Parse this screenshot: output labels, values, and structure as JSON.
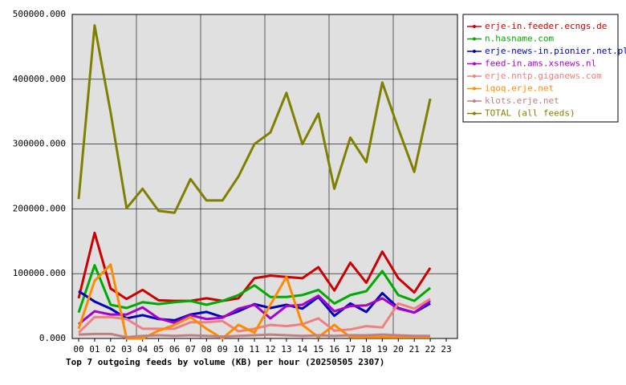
{
  "chart_data": {
    "type": "line",
    "title": "Top 7 outgoing feeds by volume (KB) per hour (20250505 2307)",
    "categories": [
      "00",
      "01",
      "02",
      "03",
      "04",
      "05",
      "06",
      "07",
      "08",
      "09",
      "10",
      "11",
      "12",
      "13",
      "14",
      "15",
      "16",
      "17",
      "18",
      "19",
      "20",
      "21",
      "22",
      "23"
    ],
    "ylim": [
      0,
      500000
    ],
    "yticks": [
      {
        "value": 0,
        "label": "0.000"
      },
      {
        "value": 100000,
        "label": "100000.000"
      },
      {
        "value": 200000,
        "label": "200000.000"
      },
      {
        "value": 300000,
        "label": "300000.000"
      },
      {
        "value": 400000,
        "label": "400000.000"
      },
      {
        "value": 500000,
        "label": "500000.000"
      }
    ],
    "grid": true,
    "legend": "right",
    "series": [
      {
        "name": "erje-in.feeder.ecngs.de",
        "color": "#cc0000",
        "values": [
          62000,
          163000,
          77000,
          61000,
          75000,
          59000,
          58000,
          58000,
          62000,
          58000,
          62000,
          93000,
          97000,
          95000,
          93000,
          110000,
          74000,
          117000,
          86000,
          134000,
          93000,
          71000,
          109000,
          null
        ]
      },
      {
        "name": "n.hasname.com",
        "color": "#00aa00",
        "values": [
          40000,
          113000,
          52000,
          47000,
          56000,
          53000,
          56000,
          58000,
          52000,
          58000,
          67000,
          82000,
          64000,
          64000,
          67000,
          75000,
          54000,
          67000,
          73000,
          104000,
          67000,
          58000,
          78000,
          null
        ]
      },
      {
        "name": "erje-news-in.pionier.net.pl",
        "color": "#0000bb",
        "values": [
          73000,
          57000,
          46000,
          31000,
          36000,
          30000,
          28000,
          37000,
          41000,
          33000,
          42000,
          53000,
          47000,
          52000,
          46000,
          64000,
          35000,
          54000,
          41000,
          70000,
          47000,
          40000,
          54000,
          null
        ]
      },
      {
        "name": "feed-in.ams.xsnews.nl",
        "color": "#aa00cc",
        "values": [
          22000,
          42000,
          37000,
          37000,
          48000,
          31000,
          24000,
          36000,
          30000,
          32000,
          46000,
          52000,
          31000,
          50000,
          52000,
          66000,
          42000,
          50000,
          51000,
          62000,
          46000,
          40000,
          58000,
          null
        ]
      },
      {
        "name": "erje.nntp.giganews.com",
        "color": "#f08080",
        "values": [
          9000,
          33000,
          33000,
          30000,
          15000,
          15000,
          15000,
          25000,
          25000,
          27000,
          11000,
          15000,
          21000,
          19000,
          22000,
          31000,
          12000,
          14000,
          19000,
          17000,
          54000,
          46000,
          61000,
          null
        ]
      },
      {
        "name": "iqoq.erje.net",
        "color": "#ff8c00",
        "values": [
          15000,
          89000,
          114000,
          0,
          0,
          12000,
          21000,
          33000,
          15000,
          0,
          21000,
          9000,
          52000,
          95000,
          21000,
          2000,
          21000,
          2000,
          2000,
          2000,
          2000,
          2000,
          2000,
          null
        ]
      },
      {
        "name": "klots.erje.net",
        "color": "#c08080",
        "values": [
          6000,
          7000,
          7000,
          2000,
          4000,
          5000,
          4000,
          5000,
          4000,
          3000,
          4000,
          5000,
          6000,
          5000,
          4000,
          5000,
          4000,
          5000,
          5000,
          6000,
          5000,
          4000,
          4000,
          null
        ]
      },
      {
        "name": "TOTAL (all feeds)",
        "color": "#808000",
        "values": [
          215000,
          483000,
          349000,
          201000,
          231000,
          197000,
          194000,
          246000,
          213000,
          213000,
          250000,
          300000,
          318000,
          379000,
          300000,
          347000,
          231000,
          310000,
          272000,
          395000,
          324000,
          257000,
          370000,
          null
        ]
      }
    ]
  }
}
